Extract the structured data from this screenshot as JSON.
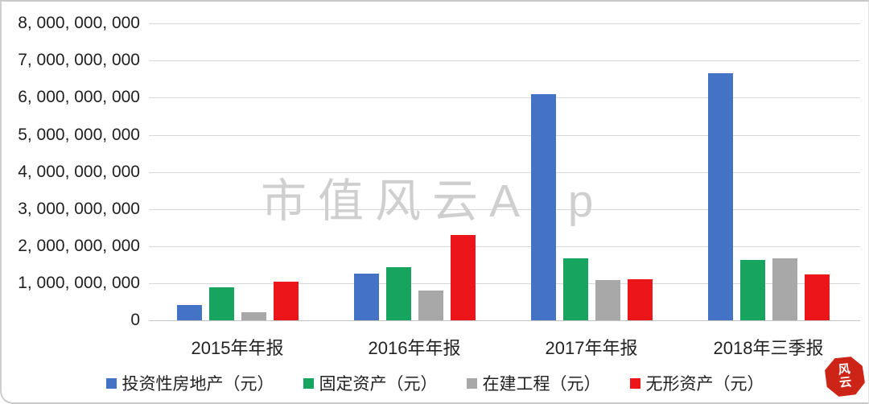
{
  "chart_data": {
    "type": "bar",
    "title": "",
    "xlabel": "",
    "ylabel": "",
    "categories": [
      "2015年年报",
      "2016年年报",
      "2017年年报",
      "2018年三季报"
    ],
    "series": [
      {
        "name": "投资性房地产（元）",
        "color": "#4472C4",
        "values": [
          420000000,
          1250000000,
          6100000000,
          6650000000
        ]
      },
      {
        "name": "固定资产（元）",
        "color": "#17A45E",
        "values": [
          900000000,
          1430000000,
          1680000000,
          1620000000
        ]
      },
      {
        "name": "在建工程（元）",
        "color": "#A8A8A8",
        "values": [
          220000000,
          800000000,
          1080000000,
          1680000000
        ]
      },
      {
        "name": "无形资产（元）",
        "color": "#EC1519",
        "values": [
          1050000000,
          2310000000,
          1100000000,
          1230000000
        ]
      }
    ],
    "ylim": [
      0,
      8000000000
    ],
    "ytick_step": 1000000000,
    "ytick_labels": [
      "0",
      "1, 000, 000, 000",
      "2, 000, 000, 000",
      "3, 000, 000, 000",
      "4, 000, 000, 000",
      "5, 000, 000, 000",
      "6, 000, 000, 000",
      "7, 000, 000, 000",
      "8, 000, 000, 000"
    ],
    "grid": true,
    "legend_position": "bottom"
  },
  "watermark": {
    "text": "市值风云App"
  },
  "seal": {
    "line1": "风",
    "line2": "云"
  }
}
